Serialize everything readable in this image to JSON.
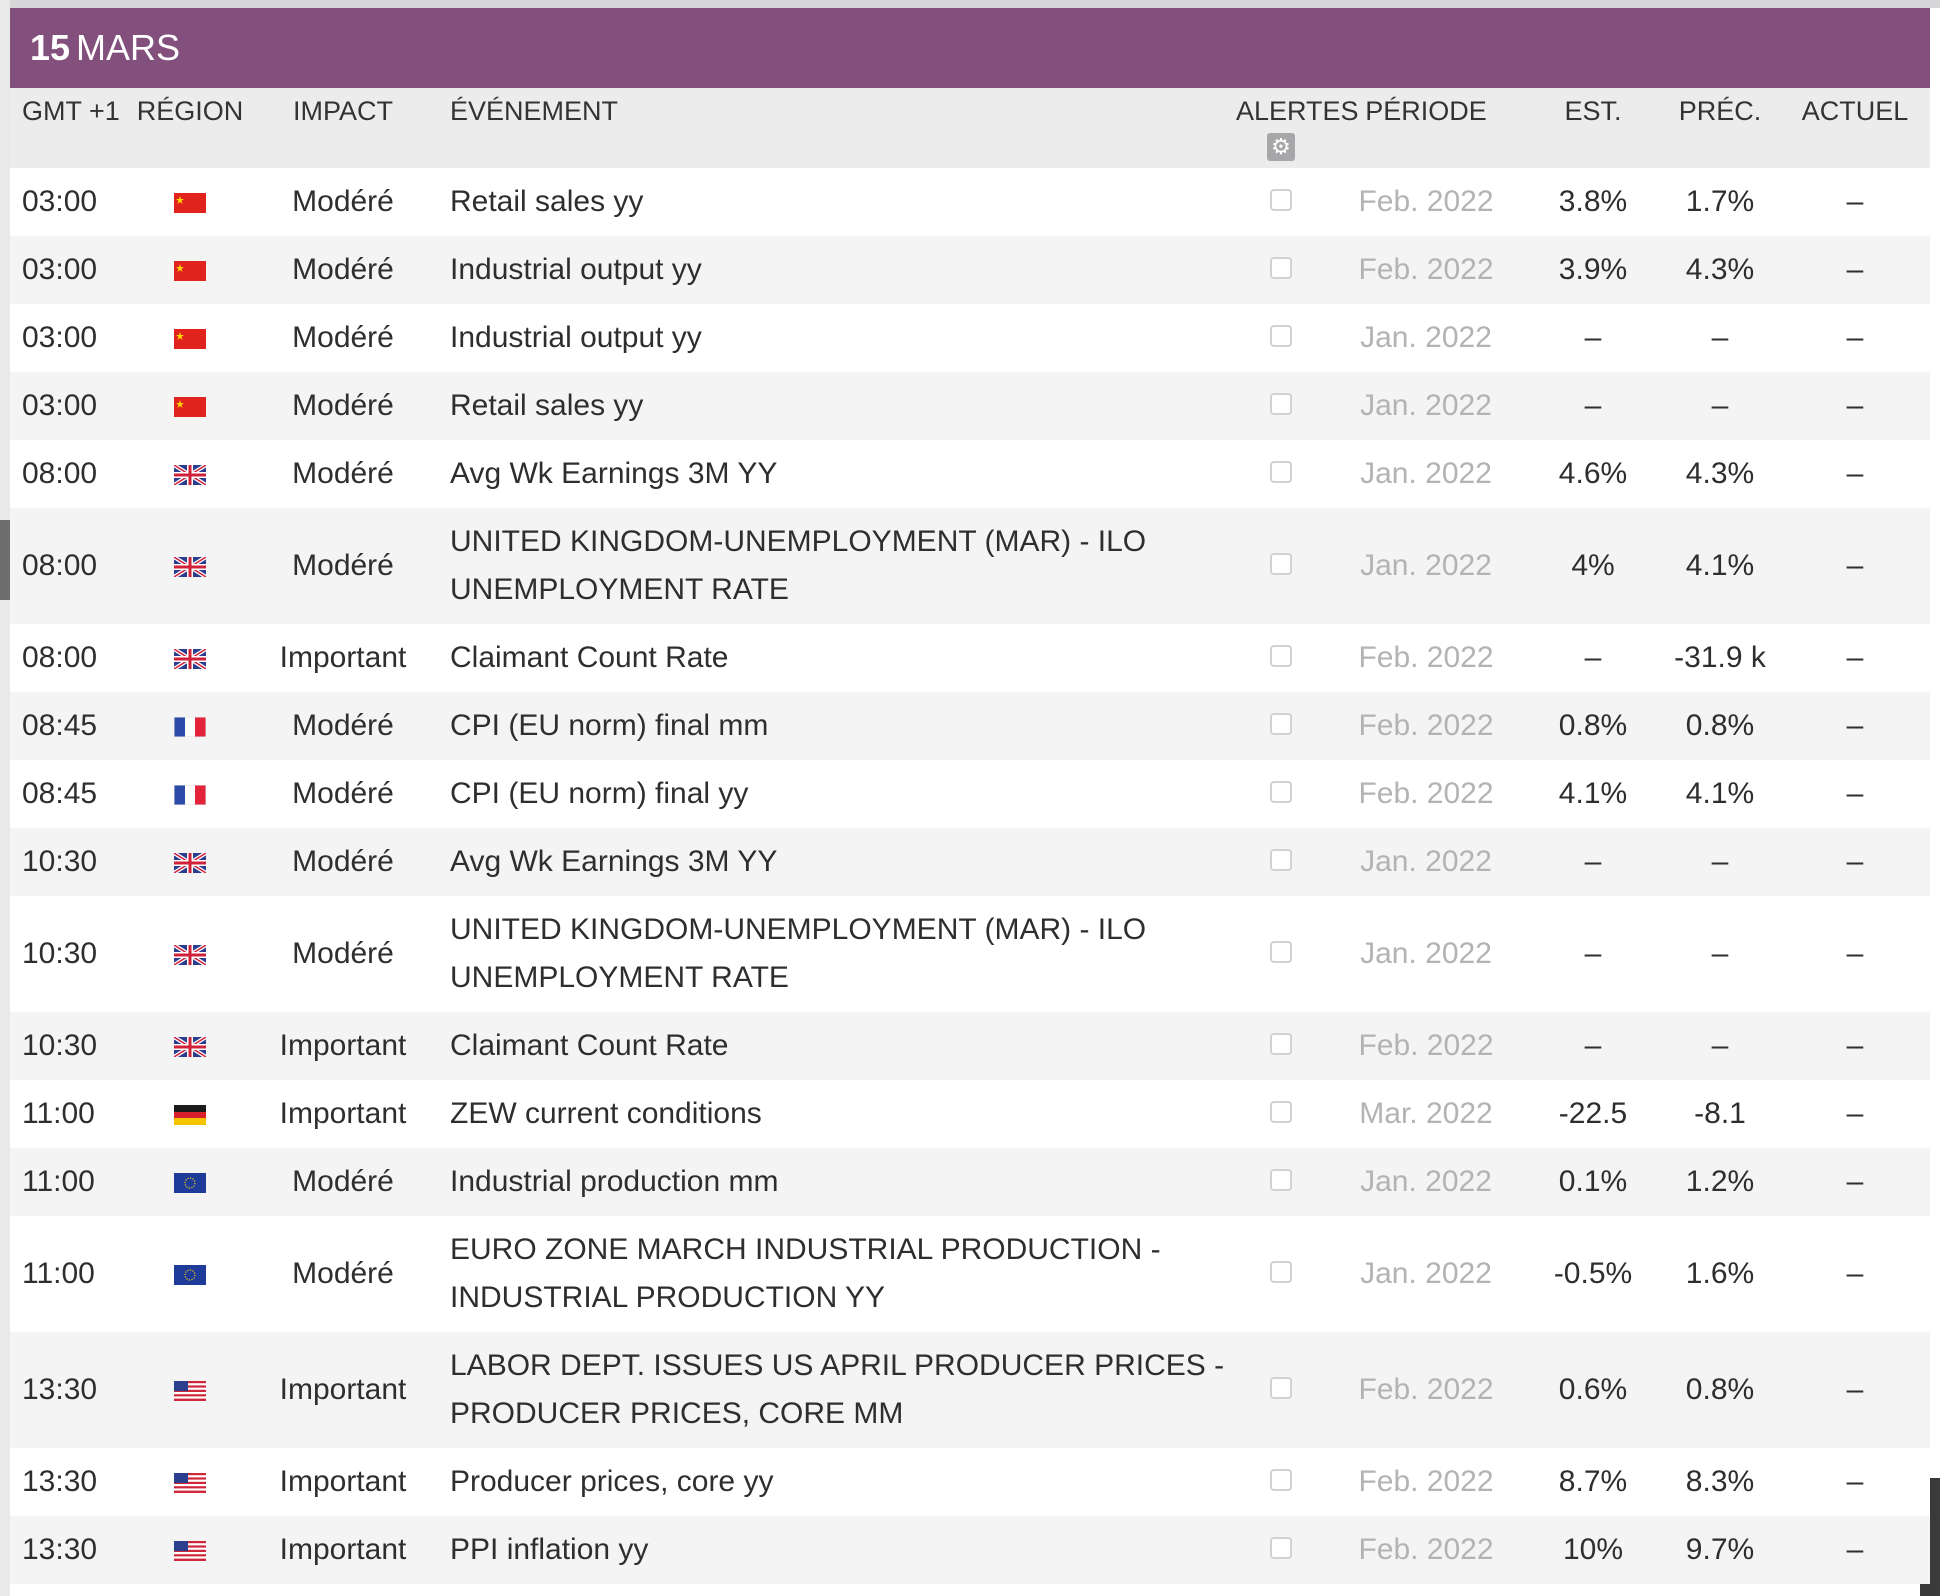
{
  "date": {
    "day": "15",
    "month": "MARS"
  },
  "columns": {
    "time": "GMT +1",
    "region": "RÉGION",
    "impact": "IMPACT",
    "event": "ÉVÉNEMENT",
    "alerts": "ALERTES",
    "period": "PÉRIODE",
    "est": "EST.",
    "prev": "PRÉC.",
    "actual": "ACTUEL"
  },
  "colors": {
    "date_bar": "#834f7c",
    "header_bg": "#ececed",
    "stripe": "#f4f4f5"
  },
  "icons": {
    "alerts_settings": "gear-icon"
  },
  "rows": [
    {
      "time": "03:00",
      "flag": "cn",
      "impact": "Modéré",
      "event": "Retail sales yy",
      "period": "Feb. 2022",
      "est": "3.8%",
      "prev": "1.7%",
      "actual": "–"
    },
    {
      "time": "03:00",
      "flag": "cn",
      "impact": "Modéré",
      "event": "Industrial output yy",
      "period": "Feb. 2022",
      "est": "3.9%",
      "prev": "4.3%",
      "actual": "–"
    },
    {
      "time": "03:00",
      "flag": "cn",
      "impact": "Modéré",
      "event": "Industrial output yy",
      "period": "Jan. 2022",
      "est": "–",
      "prev": "–",
      "actual": "–"
    },
    {
      "time": "03:00",
      "flag": "cn",
      "impact": "Modéré",
      "event": "Retail sales yy",
      "period": "Jan. 2022",
      "est": "–",
      "prev": "–",
      "actual": "–"
    },
    {
      "time": "08:00",
      "flag": "gb",
      "impact": "Modéré",
      "event": "Avg Wk Earnings 3M YY",
      "period": "Jan. 2022",
      "est": "4.6%",
      "prev": "4.3%",
      "actual": "–"
    },
    {
      "time": "08:00",
      "flag": "gb",
      "impact": "Modéré",
      "event": "UNITED KINGDOM-UNEMPLOYMENT (MAR) - ILO UNEMPLOYMENT RATE",
      "period": "Jan. 2022",
      "est": "4%",
      "prev": "4.1%",
      "actual": "–",
      "tall": true
    },
    {
      "time": "08:00",
      "flag": "gb",
      "impact": "Important",
      "event": "Claimant Count Rate",
      "period": "Feb. 2022",
      "est": "–",
      "prev": "-31.9 k",
      "actual": "–"
    },
    {
      "time": "08:45",
      "flag": "fr",
      "impact": "Modéré",
      "event": "CPI (EU norm) final mm",
      "period": "Feb. 2022",
      "est": "0.8%",
      "prev": "0.8%",
      "actual": "–"
    },
    {
      "time": "08:45",
      "flag": "fr",
      "impact": "Modéré",
      "event": "CPI (EU norm) final yy",
      "period": "Feb. 2022",
      "est": "4.1%",
      "prev": "4.1%",
      "actual": "–"
    },
    {
      "time": "10:30",
      "flag": "gb",
      "impact": "Modéré",
      "event": "Avg Wk Earnings 3M YY",
      "period": "Jan. 2022",
      "est": "–",
      "prev": "–",
      "actual": "–"
    },
    {
      "time": "10:30",
      "flag": "gb",
      "impact": "Modéré",
      "event": "UNITED KINGDOM-UNEMPLOYMENT (MAR) - ILO UNEMPLOYMENT RATE",
      "period": "Jan. 2022",
      "est": "–",
      "prev": "–",
      "actual": "–",
      "tall": true
    },
    {
      "time": "10:30",
      "flag": "gb",
      "impact": "Important",
      "event": "Claimant Count Rate",
      "period": "Feb. 2022",
      "est": "–",
      "prev": "–",
      "actual": "–"
    },
    {
      "time": "11:00",
      "flag": "de",
      "impact": "Important",
      "event": "ZEW current conditions",
      "period": "Mar. 2022",
      "est": "-22.5",
      "prev": "-8.1",
      "actual": "–"
    },
    {
      "time": "11:00",
      "flag": "eu",
      "impact": "Modéré",
      "event": "Industrial production mm",
      "period": "Jan. 2022",
      "est": "0.1%",
      "prev": "1.2%",
      "actual": "–"
    },
    {
      "time": "11:00",
      "flag": "eu",
      "impact": "Modéré",
      "event": "EURO ZONE MARCH INDUSTRIAL PRODUCTION - INDUSTRIAL PRODUCTION YY",
      "period": "Jan. 2022",
      "est": "-0.5%",
      "prev": "1.6%",
      "actual": "–",
      "tall": true
    },
    {
      "time": "13:30",
      "flag": "us",
      "impact": "Important",
      "event": "LABOR DEPT. ISSUES US APRIL PRODUCER PRICES - PRODUCER PRICES, CORE MM",
      "period": "Feb. 2022",
      "est": "0.6%",
      "prev": "0.8%",
      "actual": "–",
      "tall": true
    },
    {
      "time": "13:30",
      "flag": "us",
      "impact": "Important",
      "event": "Producer prices, core yy",
      "period": "Feb. 2022",
      "est": "8.7%",
      "prev": "8.3%",
      "actual": "–"
    },
    {
      "time": "13:30",
      "flag": "us",
      "impact": "Important",
      "event": "PPI inflation yy",
      "period": "Feb. 2022",
      "est": "10%",
      "prev": "9.7%",
      "actual": "–"
    }
  ]
}
